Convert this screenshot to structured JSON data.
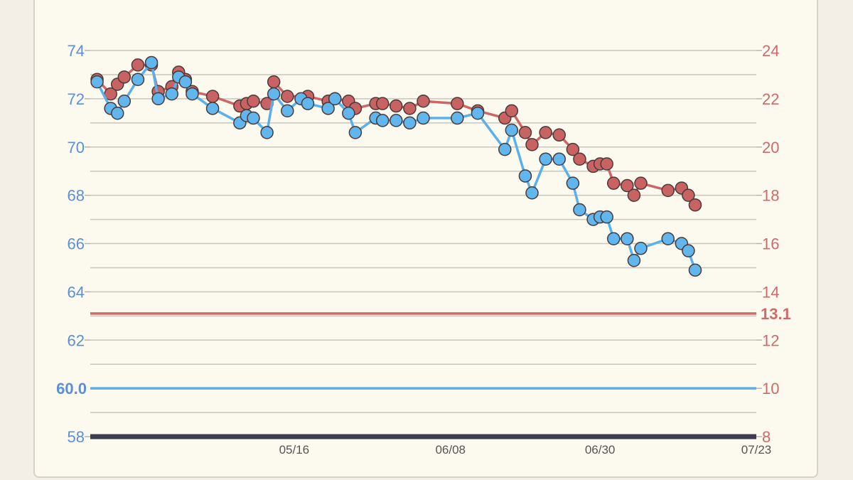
{
  "chart_data": {
    "type": "line",
    "x_ticks": [
      "05/16",
      "06/08",
      "06/30",
      "07/23"
    ],
    "left_axis": {
      "range": [
        58,
        74
      ],
      "ticks": [
        58,
        62,
        64,
        66,
        68,
        70,
        72,
        74
      ],
      "color": "#5b8fd8",
      "reference": {
        "value": 60.0,
        "label": "60.0",
        "color": "#5aaee6"
      }
    },
    "right_axis": {
      "range": [
        8,
        24
      ],
      "ticks": [
        8,
        10,
        12,
        14,
        16,
        18,
        20,
        22,
        24
      ],
      "color": "#cf6a6a",
      "reference": {
        "value": 13.1,
        "label": "13.1",
        "color": "#d06a6a"
      }
    },
    "x_range_days": [
      0,
      98
    ],
    "x_tick_days": [
      30,
      53,
      75,
      98
    ],
    "grid": true,
    "series": [
      {
        "axis": "left",
        "color": "#5ab0ea",
        "marker_fill": "#62b6ee",
        "points": [
          [
            1,
            72.7
          ],
          [
            3,
            71.6
          ],
          [
            4,
            71.4
          ],
          [
            5,
            71.9
          ],
          [
            7,
            72.8
          ],
          [
            9,
            73.5
          ],
          [
            10,
            72.0
          ],
          [
            12,
            72.2
          ],
          [
            13,
            72.9
          ],
          [
            14,
            72.7
          ],
          [
            15,
            72.2
          ],
          [
            18,
            71.6
          ],
          [
            22,
            71.0
          ],
          [
            23,
            71.3
          ],
          [
            24,
            71.2
          ],
          [
            26,
            70.6
          ],
          [
            27,
            72.2
          ],
          [
            29,
            71.5
          ],
          [
            31,
            72.0
          ],
          [
            32,
            71.8
          ],
          [
            35,
            71.6
          ],
          [
            36,
            72.0
          ],
          [
            38,
            71.4
          ],
          [
            39,
            70.6
          ],
          [
            42,
            71.2
          ],
          [
            43,
            71.1
          ],
          [
            45,
            71.1
          ],
          [
            47,
            71.0
          ],
          [
            49,
            71.2
          ],
          [
            54,
            71.2
          ],
          [
            57,
            71.4
          ],
          [
            61,
            69.9
          ],
          [
            62,
            70.7
          ],
          [
            64,
            68.8
          ],
          [
            65,
            68.1
          ],
          [
            67,
            69.5
          ],
          [
            69,
            69.5
          ],
          [
            71,
            68.5
          ],
          [
            72,
            67.4
          ],
          [
            74,
            67.0
          ],
          [
            75,
            67.1
          ],
          [
            76,
            67.1
          ],
          [
            77,
            66.2
          ],
          [
            79,
            66.2
          ],
          [
            80,
            65.3
          ],
          [
            81,
            65.8
          ],
          [
            85,
            66.2
          ],
          [
            87,
            66.0
          ],
          [
            88,
            65.7
          ],
          [
            89,
            64.9
          ]
        ]
      },
      {
        "axis": "right",
        "color": "#cd6666",
        "marker_fill": "#c96262",
        "points": [
          [
            1,
            22.8
          ],
          [
            3,
            22.2
          ],
          [
            4,
            22.6
          ],
          [
            5,
            22.9
          ],
          [
            7,
            23.4
          ],
          [
            9,
            23.4
          ],
          [
            10,
            22.3
          ],
          [
            12,
            22.5
          ],
          [
            13,
            23.1
          ],
          [
            14,
            22.8
          ],
          [
            15,
            22.3
          ],
          [
            18,
            22.1
          ],
          [
            22,
            21.7
          ],
          [
            23,
            21.8
          ],
          [
            24,
            21.9
          ],
          [
            26,
            21.8
          ],
          [
            27,
            22.7
          ],
          [
            29,
            22.1
          ],
          [
            32,
            22.1
          ],
          [
            35,
            21.9
          ],
          [
            36,
            22.0
          ],
          [
            38,
            21.9
          ],
          [
            39,
            21.6
          ],
          [
            42,
            21.8
          ],
          [
            43,
            21.8
          ],
          [
            45,
            21.7
          ],
          [
            47,
            21.6
          ],
          [
            49,
            21.9
          ],
          [
            54,
            21.8
          ],
          [
            57,
            21.5
          ],
          [
            61,
            21.2
          ],
          [
            62,
            21.5
          ],
          [
            64,
            20.6
          ],
          [
            65,
            20.1
          ],
          [
            67,
            20.6
          ],
          [
            69,
            20.5
          ],
          [
            71,
            19.9
          ],
          [
            72,
            19.5
          ],
          [
            74,
            19.2
          ],
          [
            75,
            19.3
          ],
          [
            76,
            19.3
          ],
          [
            77,
            18.5
          ],
          [
            79,
            18.4
          ],
          [
            80,
            18.0
          ],
          [
            81,
            18.5
          ],
          [
            85,
            18.2
          ],
          [
            87,
            18.3
          ],
          [
            88,
            18.0
          ],
          [
            89,
            17.6
          ]
        ]
      }
    ]
  }
}
